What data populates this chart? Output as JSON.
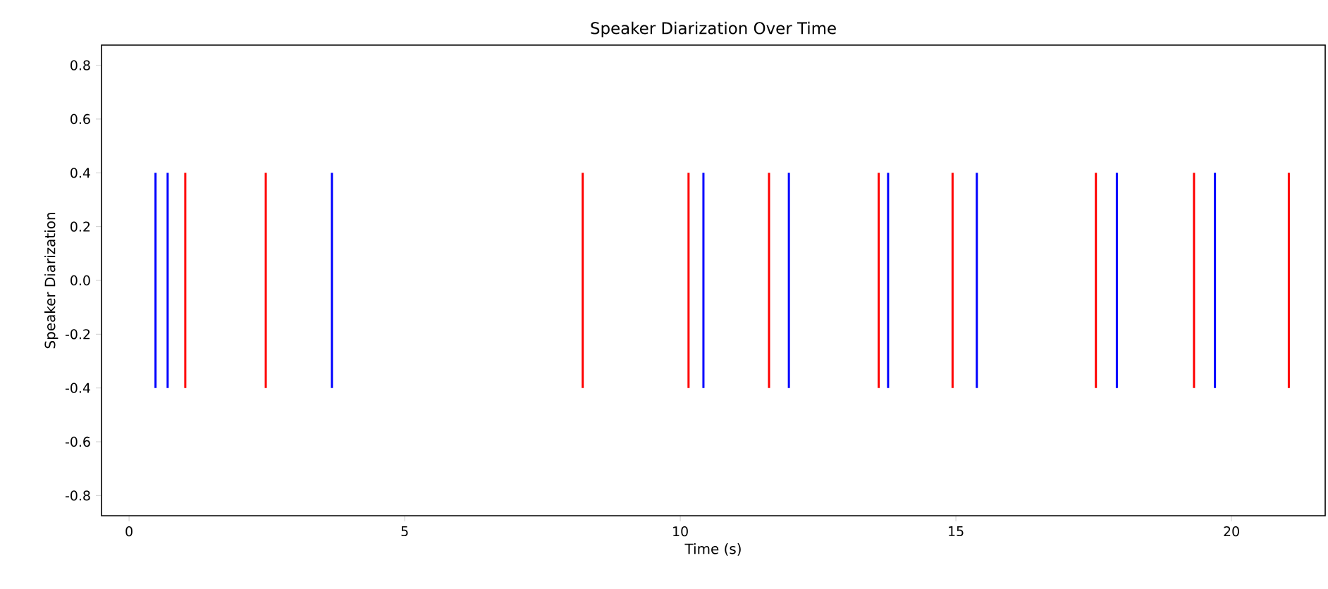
{
  "chart_data": {
    "type": "bar",
    "title": "Speaker Diarization Over Time",
    "xlabel": "Time (s)",
    "ylabel": "Speaker Diarization",
    "series": [
      {
        "color": "#0000ff",
        "x": [
          0.48,
          0.7,
          3.68,
          10.42,
          11.97,
          13.77,
          15.38,
          17.92,
          19.7
        ],
        "base": [
          -0.4,
          -0.4,
          -0.4,
          -0.4,
          -0.4,
          -0.4,
          -0.4,
          -0.4,
          -0.4
        ],
        "values": [
          0.8,
          0.8,
          0.8,
          0.8,
          0.8,
          0.8,
          0.8,
          0.8,
          0.8
        ]
      },
      {
        "color": "#ff0000",
        "x": [
          1.02,
          2.48,
          8.23,
          10.15,
          11.61,
          13.6,
          14.94,
          17.54,
          19.32,
          21.04
        ],
        "base": [
          -0.4,
          -0.4,
          -0.4,
          -0.4,
          -0.4,
          -0.4,
          -0.4,
          -0.4,
          -0.4,
          -0.4
        ],
        "values": [
          0.8,
          0.8,
          0.8,
          0.8,
          0.8,
          0.8,
          0.8,
          0.8,
          0.8,
          0.8
        ]
      }
    ],
    "xlim": [
      -0.5,
      21.7
    ],
    "ylim": [
      -0.875,
      0.875
    ],
    "xticks": [
      0,
      5,
      10,
      15,
      20
    ],
    "yticks": [
      -0.8,
      -0.6,
      -0.4,
      -0.2,
      {
        "value": 0,
        "label": "0.0"
      },
      0.2,
      0.4,
      0.6,
      0.8
    ]
  }
}
